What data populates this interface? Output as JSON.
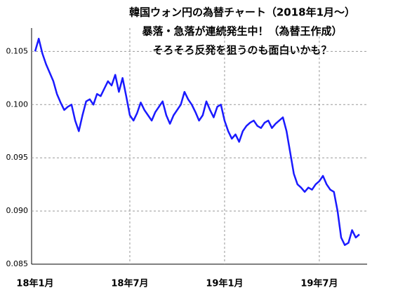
{
  "chart_data": {
    "type": "line",
    "title": [
      "韓国ウォン円の為替チャート（2018年1月～）",
      "暴落・急落が連続発生中！（為替王作成）",
      "そろそろ反発を狙うのも面白いかも？"
    ],
    "categories": [
      "18年1月",
      null,
      null,
      null,
      null,
      null,
      null,
      null,
      null,
      null,
      null,
      null,
      null,
      null,
      null,
      null,
      null,
      null,
      null,
      null,
      null,
      null,
      null,
      null,
      null,
      null,
      "18年7月",
      null,
      null,
      null,
      null,
      null,
      null,
      null,
      null,
      null,
      null,
      null,
      null,
      null,
      null,
      null,
      null,
      null,
      null,
      null,
      null,
      null,
      null,
      null,
      null,
      null,
      "19年1月",
      null,
      null,
      null,
      null,
      null,
      null,
      null,
      null,
      null,
      null,
      null,
      null,
      null,
      null,
      null,
      null,
      null,
      null,
      null,
      null,
      null,
      null,
      null,
      null,
      null,
      "19年7月",
      null,
      null,
      null,
      null,
      null,
      null,
      null,
      null,
      null,
      null,
      null
    ],
    "series": [
      {
        "color": "#1a1aff",
        "values": [
          0.105,
          0.1062,
          0.1048,
          0.1038,
          0.103,
          0.1022,
          0.101,
          0.1002,
          0.0995,
          0.0998,
          0.1,
          0.0985,
          0.0975,
          0.099,
          0.1003,
          0.1005,
          0.1,
          0.101,
          0.1008,
          0.1015,
          0.1022,
          0.1018,
          0.1028,
          0.1012,
          0.1025,
          0.1008,
          0.099,
          0.0985,
          0.0992,
          0.1002,
          0.0995,
          0.099,
          0.0985,
          0.0993,
          0.0998,
          0.1003,
          0.099,
          0.0982,
          0.099,
          0.0995,
          0.1,
          0.1012,
          0.1005,
          0.1,
          0.0993,
          0.0985,
          0.099,
          0.1003,
          0.0995,
          0.0988,
          0.0998,
          0.1,
          0.0985,
          0.0975,
          0.0968,
          0.0972,
          0.0965,
          0.0975,
          0.098,
          0.0983,
          0.0985,
          0.098,
          0.0978,
          0.0983,
          0.0985,
          0.0978,
          0.0982,
          0.0985,
          0.0988,
          0.0975,
          0.0955,
          0.0935,
          0.0925,
          0.0922,
          0.0918,
          0.0922,
          0.092,
          0.0925,
          0.0928,
          0.0933,
          0.0925,
          0.092,
          0.0918,
          0.09,
          0.0875,
          0.0868,
          0.087,
          0.0882,
          0.0875,
          0.0878
        ]
      }
    ],
    "ylim": [
      0.085,
      0.1072
    ],
    "yticks": [
      0.085,
      {
        "value": 0.09,
        "label": "0.090"
      },
      0.095,
      {
        "value": 0.1,
        "label": "0.100"
      },
      0.105
    ],
    "grid": true
  }
}
